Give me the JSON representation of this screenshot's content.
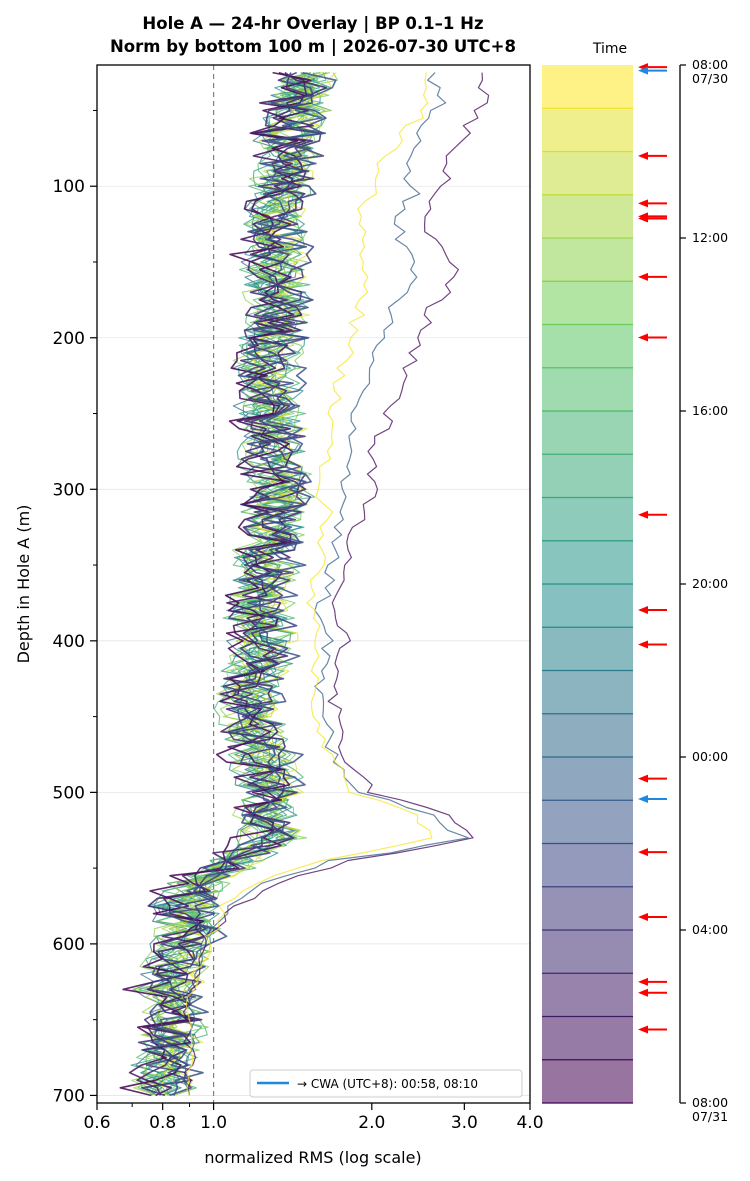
{
  "title_line1": "Hole A — 24-hr Overlay  |  BP 0.1–1 Hz",
  "title_line2": "Norm by bottom 100 m  |  2026-07-30 UTC+8",
  "time_header": "Time",
  "legend_label": "→ CWA (UTC+8): 00:58, 08:10",
  "colors": {
    "cwa_arrow": "#1e88e5",
    "event_arrow": "#ff0000",
    "reference_line": "#808080",
    "colormap": "viridis"
  },
  "chart_data": {
    "type": "line",
    "xlabel": "normalized RMS  (log scale)",
    "ylabel": "Depth in Hole A (m)",
    "x_scale": "log",
    "xlim": [
      0.6,
      4.0
    ],
    "ylim": [
      705,
      20
    ],
    "x_ticks": [
      "0.6",
      "0.8",
      "1.0",
      "2.0",
      "3.0",
      "4.0"
    ],
    "x_tick_values": [
      0.6,
      0.8,
      1.0,
      2.0,
      3.0,
      4.0
    ],
    "y_ticks": [
      "100",
      "200",
      "300",
      "400",
      "500",
      "600",
      "700"
    ],
    "y_tick_values": [
      100,
      200,
      300,
      400,
      500,
      600,
      700
    ],
    "reference_x": 1.0,
    "grid": "horizontal",
    "legend_position": "bottom-right",
    "depths": [
      25,
      45,
      65,
      85,
      105,
      120,
      140,
      160,
      180,
      195,
      210,
      225,
      240,
      260,
      280,
      300,
      320,
      340,
      360,
      380,
      400,
      420,
      440,
      460,
      480,
      500,
      515,
      530,
      545,
      560,
      575,
      590,
      610,
      630,
      650,
      670,
      690,
      700
    ],
    "high_series": [
      {
        "name": "",
        "color_t": 0.02,
        "values": [
          3.2,
          3.3,
          3.0,
          2.8,
          2.7,
          2.5,
          2.7,
          2.9,
          2.6,
          2.5,
          2.4,
          2.3,
          2.2,
          2.1,
          2.0,
          2.0,
          1.9,
          1.8,
          1.75,
          1.7,
          1.8,
          1.7,
          1.7,
          1.75,
          1.8,
          2.0,
          2.8,
          3.2,
          1.8,
          1.3,
          1.1,
          1.0,
          0.95,
          0.9,
          0.9,
          0.9,
          0.9,
          0.9
        ]
      },
      {
        "name": "",
        "color_t": 0.3,
        "values": [
          2.6,
          2.7,
          2.5,
          2.3,
          2.4,
          2.2,
          2.3,
          2.4,
          2.2,
          2.1,
          2.0,
          1.95,
          1.9,
          1.85,
          1.8,
          1.8,
          1.75,
          1.7,
          1.65,
          1.6,
          1.65,
          1.6,
          1.6,
          1.65,
          1.7,
          1.9,
          2.6,
          3.0,
          1.7,
          1.25,
          1.05,
          1.0,
          0.95,
          0.9,
          0.9,
          0.9,
          0.9,
          0.9
        ]
      },
      {
        "name": "",
        "color_t": 0.99,
        "values": [
          2.5,
          2.6,
          2.3,
          2.1,
          2.0,
          1.9,
          1.9,
          2.0,
          1.9,
          1.85,
          1.8,
          1.75,
          1.7,
          1.7,
          1.65,
          1.6,
          1.65,
          1.6,
          1.55,
          1.55,
          1.6,
          1.55,
          1.55,
          1.6,
          1.7,
          1.8,
          2.4,
          2.6,
          1.6,
          1.2,
          1.05,
          1.0,
          0.95,
          0.9,
          0.9,
          0.9,
          0.9,
          0.9
        ]
      }
    ],
    "bundle_center": [
      1.5,
      1.45,
      1.4,
      1.38,
      1.35,
      1.3,
      1.32,
      1.3,
      1.35,
      1.3,
      1.28,
      1.25,
      1.28,
      1.3,
      1.3,
      1.35,
      1.3,
      1.28,
      1.25,
      1.22,
      1.25,
      1.2,
      1.18,
      1.2,
      1.25,
      1.3,
      1.25,
      1.3,
      1.1,
      0.95,
      0.88,
      0.9,
      0.85,
      0.82,
      0.85,
      0.82,
      0.8,
      0.8
    ],
    "bundle_series_count": 20,
    "time_axis": {
      "ticks": [
        "08:00\n07/30",
        "12:00",
        "16:00",
        "20:00",
        "00:00",
        "04:00",
        "08:00\n07/31"
      ],
      "tick_hours": [
        0,
        4,
        8,
        12,
        16,
        20,
        24
      ],
      "bands": 24
    },
    "event_markers": [
      {
        "hours": 0.05,
        "kind": "event"
      },
      {
        "hours": 0.13,
        "kind": "cwa"
      },
      {
        "hours": 2.1,
        "kind": "event"
      },
      {
        "hours": 3.2,
        "kind": "event"
      },
      {
        "hours": 3.5,
        "kind": "event"
      },
      {
        "hours": 3.55,
        "kind": "event"
      },
      {
        "hours": 4.9,
        "kind": "event"
      },
      {
        "hours": 6.3,
        "kind": "event"
      },
      {
        "hours": 10.4,
        "kind": "event"
      },
      {
        "hours": 12.6,
        "kind": "event"
      },
      {
        "hours": 13.4,
        "kind": "event"
      },
      {
        "hours": 16.5,
        "kind": "event"
      },
      {
        "hours": 16.97,
        "kind": "cwa"
      },
      {
        "hours": 18.2,
        "kind": "event"
      },
      {
        "hours": 19.7,
        "kind": "event"
      },
      {
        "hours": 21.2,
        "kind": "event"
      },
      {
        "hours": 21.45,
        "kind": "event"
      },
      {
        "hours": 22.3,
        "kind": "event"
      }
    ]
  }
}
